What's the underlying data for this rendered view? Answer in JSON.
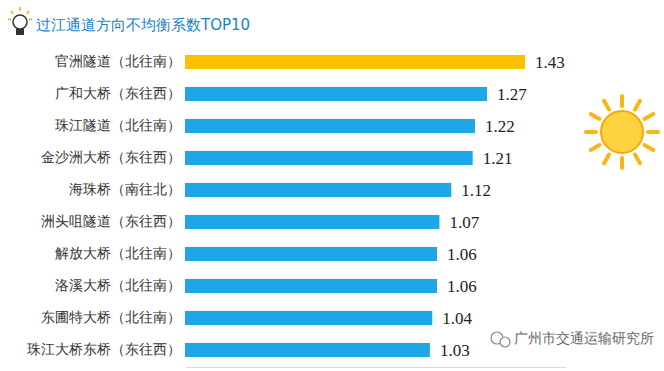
{
  "chart_data": {
    "type": "bar",
    "orientation": "horizontal",
    "title": "过江通道方向不均衡系数TOP10",
    "categories": [
      "官洲隧道（北往南）",
      "广和大桥（东往西）",
      "珠江隧道（北往南）",
      "金沙洲大桥（东往西）",
      "海珠桥（南往北）",
      "洲头咀隧道（东往西）",
      "解放大桥（北往南）",
      "洛溪大桥（北往南）",
      "东圃特大桥（北往南）",
      "珠江大桥东桥（东往西）"
    ],
    "values": [
      1.43,
      1.27,
      1.22,
      1.21,
      1.12,
      1.07,
      1.06,
      1.06,
      1.04,
      1.03
    ],
    "colors": [
      "#ffc000",
      "#1ea6e6",
      "#1ea6e6",
      "#1ea6e6",
      "#1ea6e6",
      "#1ea6e6",
      "#1ea6e6",
      "#1ea6e6",
      "#1ea6e6",
      "#1ea6e6"
    ],
    "xlim": [
      0,
      1.6
    ],
    "xticks": [],
    "tick_labels": false,
    "grid": false,
    "data_labels": true,
    "annotations": [
      "广州市交通运输研究所"
    ]
  }
}
